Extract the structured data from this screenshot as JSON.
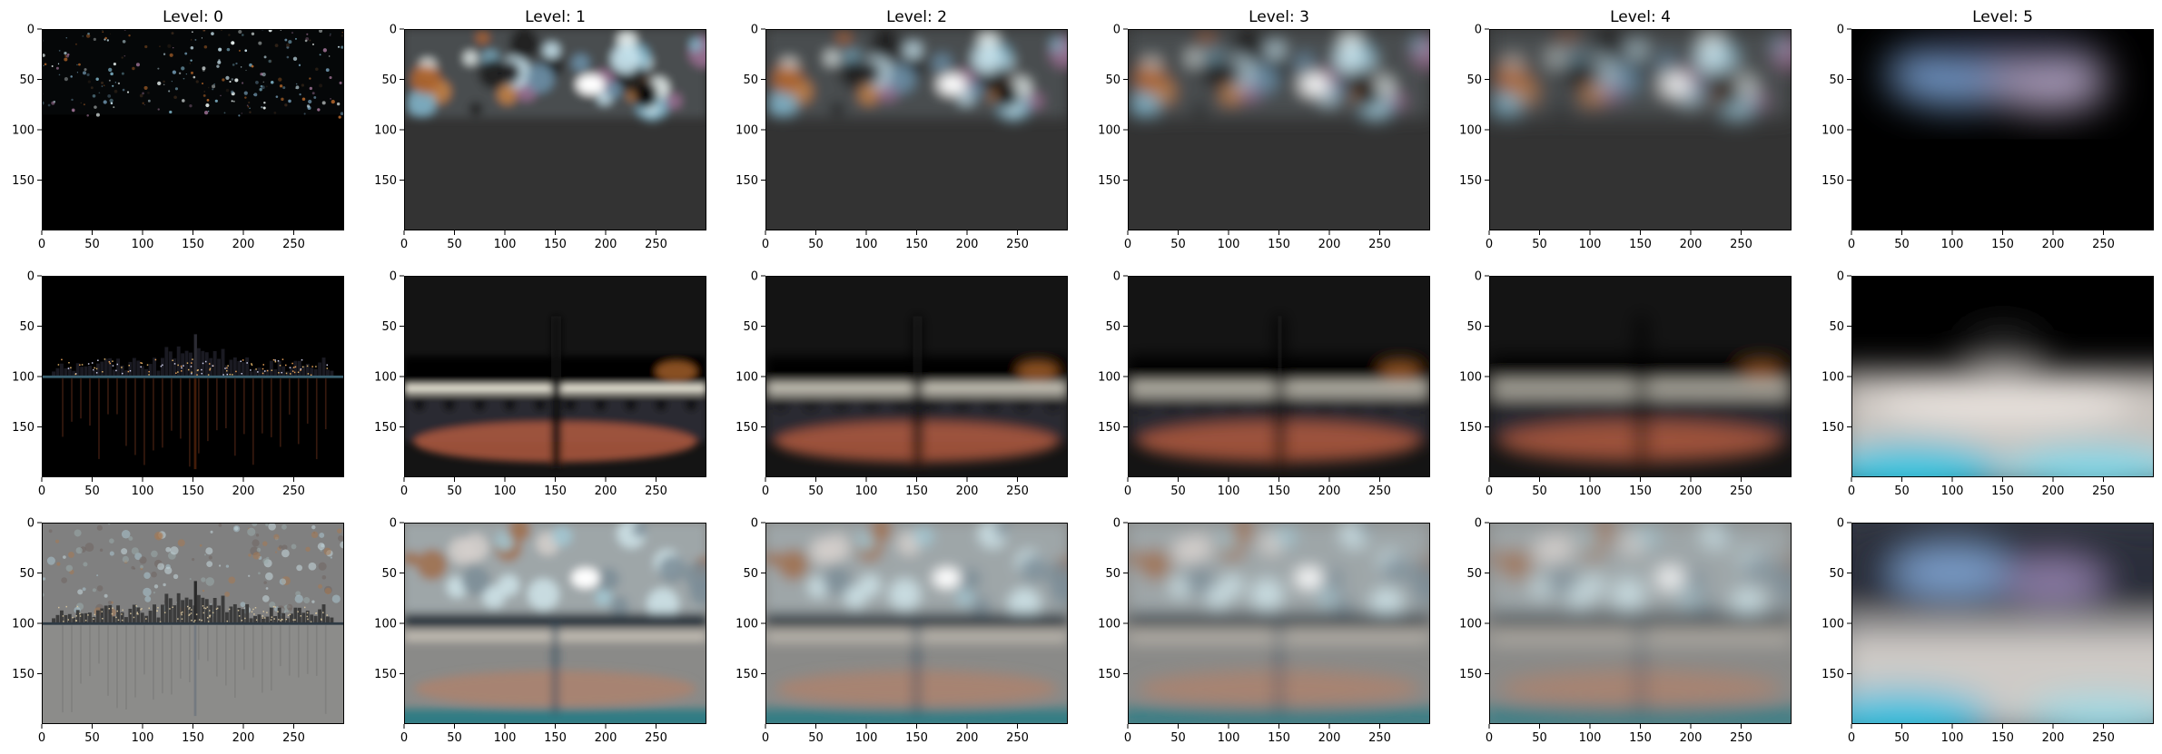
{
  "chart_data": {
    "type": "image_grid",
    "rows": 3,
    "columns": 6,
    "titles": [
      "Level: 0",
      "Level: 1",
      "Level: 2",
      "Level: 3",
      "Level: 4",
      "Level: 5"
    ],
    "x_ticks": [
      0,
      50,
      100,
      150,
      200,
      250
    ],
    "y_ticks": [
      0,
      50,
      100,
      150
    ],
    "x_range": [
      0,
      300
    ],
    "y_range": [
      200,
      0
    ],
    "panels": [
      {
        "row": 0,
        "col": 0,
        "style": "stars",
        "bg": "#000000"
      },
      {
        "row": 0,
        "col": 1,
        "style": "blobs_top",
        "bg": "#333333"
      },
      {
        "row": 0,
        "col": 2,
        "style": "blobs_top",
        "bg": "#333333"
      },
      {
        "row": 0,
        "col": 3,
        "style": "blobs_top",
        "bg": "#333333"
      },
      {
        "row": 0,
        "col": 4,
        "style": "blobs_top",
        "bg": "#333333"
      },
      {
        "row": 0,
        "col": 5,
        "style": "glow_top",
        "bg": "#000000"
      },
      {
        "row": 1,
        "col": 0,
        "style": "skyline_dark",
        "bg": "#000000"
      },
      {
        "row": 1,
        "col": 1,
        "style": "band_dark",
        "bg": "#141414"
      },
      {
        "row": 1,
        "col": 2,
        "style": "band_dark",
        "bg": "#141414"
      },
      {
        "row": 1,
        "col": 3,
        "style": "band_dark",
        "bg": "#141414"
      },
      {
        "row": 1,
        "col": 4,
        "style": "band_dark",
        "bg": "#141414"
      },
      {
        "row": 1,
        "col": 5,
        "style": "bright_low",
        "bg": "#000000"
      },
      {
        "row": 2,
        "col": 0,
        "style": "skyline_gray",
        "bg": "#808080"
      },
      {
        "row": 2,
        "col": 1,
        "style": "band_gray",
        "bg": "#8a8a88"
      },
      {
        "row": 2,
        "col": 2,
        "style": "band_gray",
        "bg": "#8a8a88"
      },
      {
        "row": 2,
        "col": 3,
        "style": "band_gray",
        "bg": "#8a8a88"
      },
      {
        "row": 2,
        "col": 4,
        "style": "band_gray",
        "bg": "#8a8a88"
      },
      {
        "row": 2,
        "col": 5,
        "style": "full_blur",
        "bg": "#3a3f48"
      }
    ]
  }
}
